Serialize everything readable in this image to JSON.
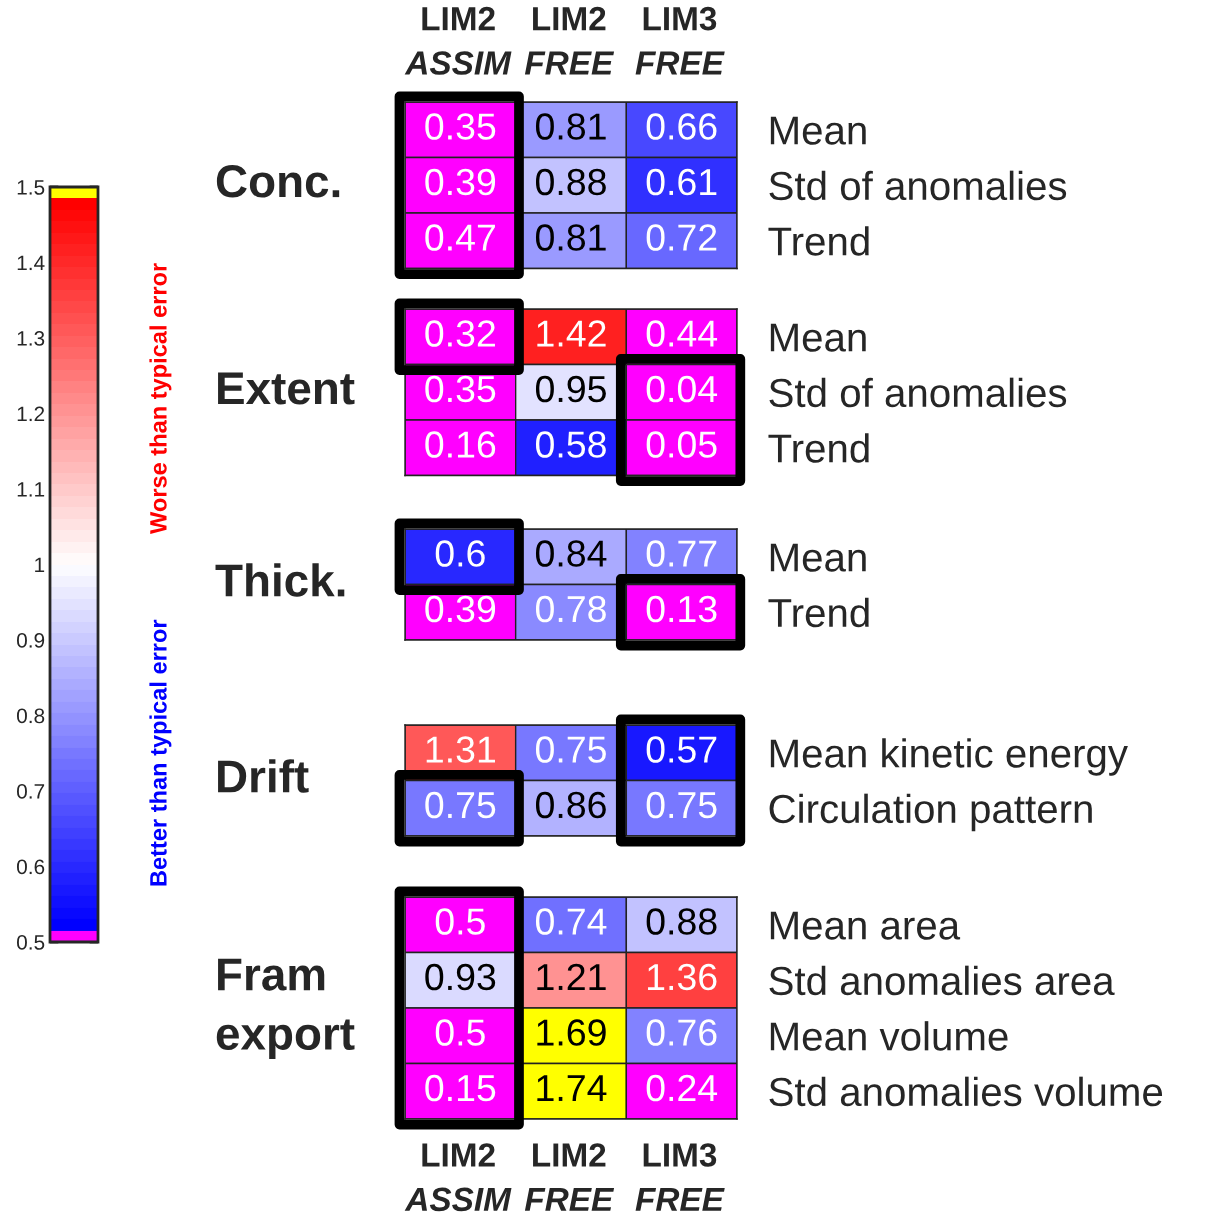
{
  "chart_data": [
    {
      "type": "heatmap",
      "title": "Conc.",
      "categories": [
        "LIM2\nASSIM",
        "LIM2\nFREE",
        "LIM3\nFREE"
      ],
      "y_categories": [
        "Mean",
        "Std of anomalies",
        "Trend"
      ],
      "cells": [
        [
          0.35,
          0.81,
          0.66
        ],
        [
          0.39,
          0.88,
          0.61
        ],
        [
          0.47,
          0.81,
          0.72
        ]
      ],
      "data_labels": true,
      "clim": [
        0.5,
        1.5
      ],
      "cticks": [
        0.5,
        0.6,
        0.7,
        0.8,
        0.9,
        1,
        1.1,
        1.2,
        1.3,
        1.4,
        1.5
      ],
      "annotations": [
        "Worse than typical error",
        "Better than typical error"
      ]
    },
    {
      "type": "heatmap",
      "title": "Extent",
      "categories": [
        null,
        null,
        null
      ],
      "y_categories": [
        "Mean",
        "Std of anomalies",
        "Trend"
      ],
      "cells": [
        [
          0.32,
          1.42,
          0.44
        ],
        [
          0.35,
          0.95,
          0.04
        ],
        [
          0.16,
          0.58,
          0.05
        ]
      ],
      "data_labels": true
    },
    {
      "type": "heatmap",
      "title": "Thick.",
      "categories": [
        null,
        null,
        null
      ],
      "y_categories": [
        "Mean",
        "Trend"
      ],
      "cells": [
        [
          0.6,
          0.84,
          0.77
        ],
        [
          0.39,
          0.78,
          0.13
        ]
      ],
      "data_labels": true
    },
    {
      "type": "heatmap",
      "title": "Drift",
      "categories": [
        null,
        null,
        null
      ],
      "y_categories": [
        "Mean kinetic energy",
        "Circulation pattern"
      ],
      "cells": [
        [
          1.31,
          0.75,
          0.57
        ],
        [
          0.75,
          0.86,
          0.75
        ]
      ],
      "data_labels": true
    },
    {
      "type": "heatmap",
      "title": "Fram\nexport",
      "categories": [
        "LIM2\nASSIM",
        "LIM2\nFREE",
        "LIM3\nFREE"
      ],
      "y_categories": [
        "Mean area",
        "Std anomalies area",
        "Mean volume",
        "Std anomalies volume"
      ],
      "cells": [
        [
          0.5,
          0.74,
          0.88
        ],
        [
          0.93,
          1.21,
          1.36
        ],
        [
          0.5,
          1.69,
          0.76
        ],
        [
          0.15,
          1.74,
          0.24
        ]
      ],
      "data_labels": true
    }
  ]
}
